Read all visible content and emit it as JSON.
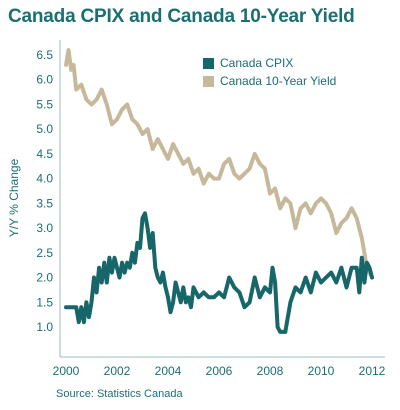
{
  "chart_data": {
    "type": "line",
    "title": "Canada CPIX and Canada 10-Year Yield",
    "ylabel": "Y/Y % Change",
    "xlabel": "",
    "source": "Source: Statistics Canada",
    "xlim": [
      2000,
      2012
    ],
    "ylim": [
      0.5,
      6.7
    ],
    "x_ticks": [
      "2000",
      "2002",
      "2004",
      "2006",
      "2008",
      "2010",
      "2012"
    ],
    "y_ticks": [
      "1.0",
      "1.5",
      "2.0",
      "2.5",
      "3.0",
      "3.5",
      "4.0",
      "4.5",
      "5.0",
      "5.5",
      "6.0",
      "6.5"
    ],
    "grid": false,
    "legend_position": "top-right",
    "colors": {
      "cpix": "#17676a",
      "yield": "#c6b99b",
      "text": "#1a6f73"
    },
    "series": [
      {
        "name": "Canada CPIX",
        "x": [
          2000.0,
          2000.4,
          2000.5,
          2000.6,
          2000.7,
          2000.8,
          2000.9,
          2001.0,
          2001.1,
          2001.2,
          2001.3,
          2001.4,
          2001.5,
          2001.6,
          2001.7,
          2001.8,
          2001.9,
          2002.0,
          2002.1,
          2002.2,
          2002.3,
          2002.4,
          2002.5,
          2002.6,
          2002.7,
          2002.8,
          2002.9,
          2003.0,
          2003.1,
          2003.2,
          2003.3,
          2003.4,
          2003.5,
          2003.6,
          2003.7,
          2003.8,
          2003.9,
          2004.0,
          2004.1,
          2004.2,
          2004.3,
          2004.4,
          2004.5,
          2004.6,
          2004.7,
          2004.8,
          2004.9,
          2005.0,
          2005.2,
          2005.4,
          2005.6,
          2005.8,
          2006.0,
          2006.2,
          2006.4,
          2006.6,
          2006.8,
          2007.0,
          2007.2,
          2007.4,
          2007.6,
          2007.8,
          2008.0,
          2008.1,
          2008.2,
          2008.3,
          2008.4,
          2008.6,
          2008.8,
          2009.0,
          2009.2,
          2009.4,
          2009.6,
          2009.8,
          2010.0,
          2010.2,
          2010.4,
          2010.6,
          2010.8,
          2011.0,
          2011.2,
          2011.4,
          2011.5,
          2011.6,
          2011.7,
          2011.8,
          2011.9,
          2012.0
        ],
        "values": [
          1.4,
          1.4,
          1.1,
          1.4,
          1.1,
          1.5,
          1.2,
          1.5,
          2.0,
          1.7,
          2.2,
          1.9,
          2.3,
          1.9,
          2.4,
          2.1,
          2.4,
          2.2,
          2.0,
          2.3,
          2.1,
          2.3,
          2.2,
          2.5,
          2.3,
          2.7,
          2.6,
          3.2,
          3.3,
          3.0,
          2.6,
          2.9,
          2.2,
          2.0,
          1.9,
          2.1,
          1.8,
          1.6,
          1.3,
          1.5,
          1.9,
          1.7,
          1.5,
          1.8,
          1.5,
          1.6,
          1.4,
          1.8,
          1.6,
          1.7,
          1.6,
          1.6,
          1.7,
          1.6,
          2.0,
          1.8,
          1.7,
          1.4,
          1.5,
          2.0,
          1.6,
          1.8,
          1.7,
          2.2,
          1.9,
          1.0,
          0.9,
          0.9,
          1.5,
          1.8,
          1.7,
          2.0,
          1.7,
          2.1,
          1.9,
          2.0,
          2.1,
          1.9,
          2.2,
          1.8,
          2.2,
          2.2,
          1.7,
          2.4,
          1.9,
          2.3,
          2.2,
          2.0
        ]
      },
      {
        "name": "Canada 10-Year Yield",
        "x": [
          2000.0,
          2000.1,
          2000.2,
          2000.3,
          2000.4,
          2000.6,
          2000.8,
          2001.0,
          2001.2,
          2001.4,
          2001.6,
          2001.8,
          2002.0,
          2002.2,
          2002.4,
          2002.6,
          2002.8,
          2003.0,
          2003.2,
          2003.4,
          2003.6,
          2003.8,
          2004.0,
          2004.2,
          2004.4,
          2004.6,
          2004.8,
          2005.0,
          2005.2,
          2005.4,
          2005.6,
          2005.8,
          2006.0,
          2006.2,
          2006.4,
          2006.6,
          2006.8,
          2007.0,
          2007.2,
          2007.4,
          2007.6,
          2007.8,
          2008.0,
          2008.2,
          2008.4,
          2008.6,
          2008.8,
          2009.0,
          2009.2,
          2009.4,
          2009.6,
          2009.8,
          2010.0,
          2010.2,
          2010.4,
          2010.6,
          2010.8,
          2011.0,
          2011.2,
          2011.4,
          2011.6,
          2011.7,
          2011.8,
          2011.9,
          2012.0
        ],
        "values": [
          6.3,
          6.6,
          6.2,
          6.3,
          5.8,
          5.9,
          5.6,
          5.5,
          5.6,
          5.8,
          5.5,
          5.1,
          5.2,
          5.4,
          5.5,
          5.2,
          5.1,
          4.9,
          5.0,
          4.6,
          4.8,
          4.6,
          4.4,
          4.7,
          4.5,
          4.3,
          4.4,
          4.1,
          4.2,
          3.9,
          4.1,
          4.0,
          4.0,
          4.3,
          4.4,
          4.1,
          4.0,
          4.1,
          4.2,
          4.5,
          4.3,
          4.2,
          3.7,
          3.8,
          3.4,
          3.6,
          3.5,
          3.0,
          3.4,
          3.5,
          3.3,
          3.5,
          3.6,
          3.5,
          3.3,
          2.9,
          3.1,
          3.2,
          3.4,
          3.2,
          2.8,
          2.5,
          2.2,
          2.1,
          2.0
        ]
      }
    ]
  }
}
